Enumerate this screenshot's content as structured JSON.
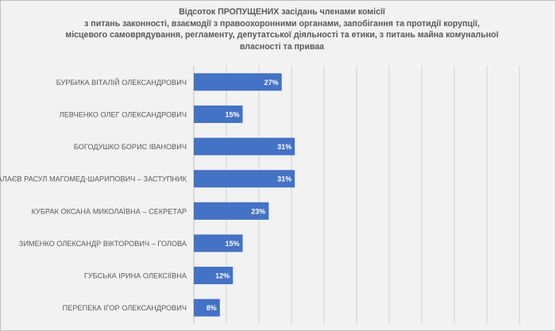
{
  "chart_data": {
    "type": "bar",
    "orientation": "horizontal",
    "title_lines": [
      "Відсоток ПРОПУЩЕНИХ засідань членами комісії",
      "з питань законності, взаємодії з правоохоронними органами, запобігання та протидії корупції,",
      "місцевого самоврядування, регламенту, депутатської діяльності та етики, з питань майна комунальної",
      "власності та приваа"
    ],
    "categories": [
      "БУРБИКА ВІТАЛІЙ ОЛЕКСАНДРОВИЧ",
      "ЛЕВЧЕНКО ОЛЕГ ОЛЕКСАНДРОВИЧ",
      "БОГОДУШКО БОРИС ІВАНОВИЧ",
      "ГАЛАЄВ РАСУЛ МАГОМЕД-ШАРИПОВИЧ – ЗАСТУПНИК",
      "КУБРАК ОКСАНА МИКОЛАЇВНА – СЕКРЕТАР",
      "ЗИМЕНКО ОЛЕКСАНДР ВІКТОРОВИЧ – ГОЛОВА",
      "ГУБСЬКА ІРИНА ОЛЕКСІЇВНА",
      "ПЕРЕПЕКА ІГОР ОЛЕКСАНДРОВИЧ"
    ],
    "values": [
      27,
      15,
      31,
      31,
      23,
      15,
      12,
      8
    ],
    "data_labels": [
      "27%",
      "15%",
      "31%",
      "31%",
      "23%",
      "15%",
      "12%",
      "8%"
    ],
    "xlim": [
      0,
      100
    ],
    "grid": true,
    "legend": "none",
    "colors": {
      "bar": "#4472c4",
      "grid": "#d0d0d0",
      "text": "#595959",
      "label": "#ffffff",
      "background": "#f2f2f2"
    }
  }
}
